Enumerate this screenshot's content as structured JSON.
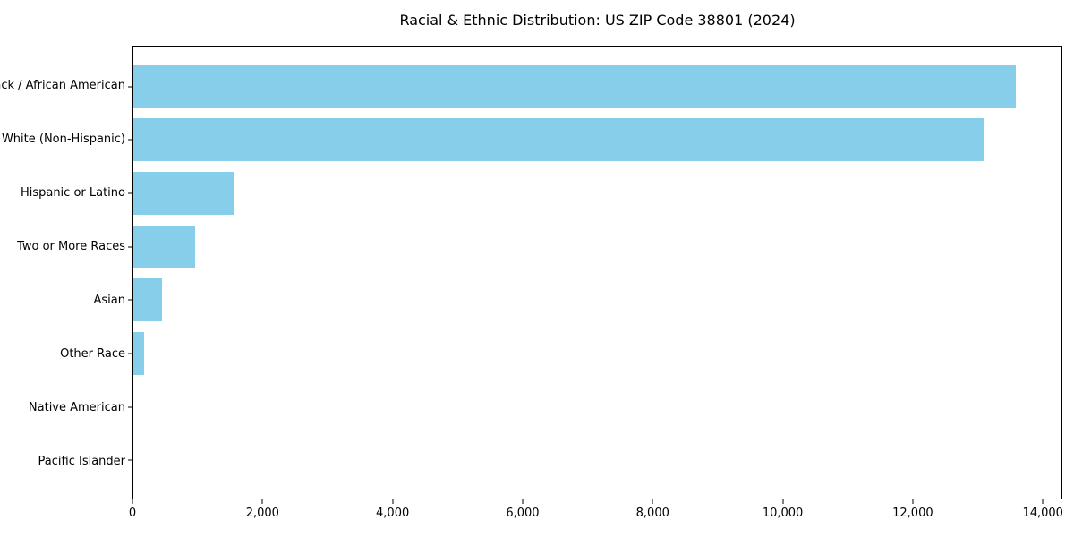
{
  "chart_data": {
    "type": "bar",
    "orientation": "horizontal",
    "title": "Racial & Ethnic Distribution: US ZIP Code 38801 (2024)",
    "categories": [
      "Black / African American",
      "White (Non-Hispanic)",
      "Hispanic or Latino",
      "Two or More Races",
      "Asian",
      "Other Race",
      "Native American",
      "Pacific Islander"
    ],
    "values": [
      13600,
      13100,
      1550,
      950,
      440,
      160,
      0,
      0
    ],
    "xlabel": "",
    "ylabel": "",
    "xlim": [
      0,
      14300
    ],
    "xticks": [
      0,
      2000,
      4000,
      6000,
      8000,
      10000,
      12000,
      14000
    ],
    "xtick_labels": [
      "0",
      "2,000",
      "4,000",
      "6,000",
      "8,000",
      "10,000",
      "12,000",
      "14,000"
    ],
    "bar_color": "#87CEEB",
    "grid": false,
    "legend_position": "none",
    "plot_border_color": "#000000",
    "background_color": "#ffffff"
  }
}
